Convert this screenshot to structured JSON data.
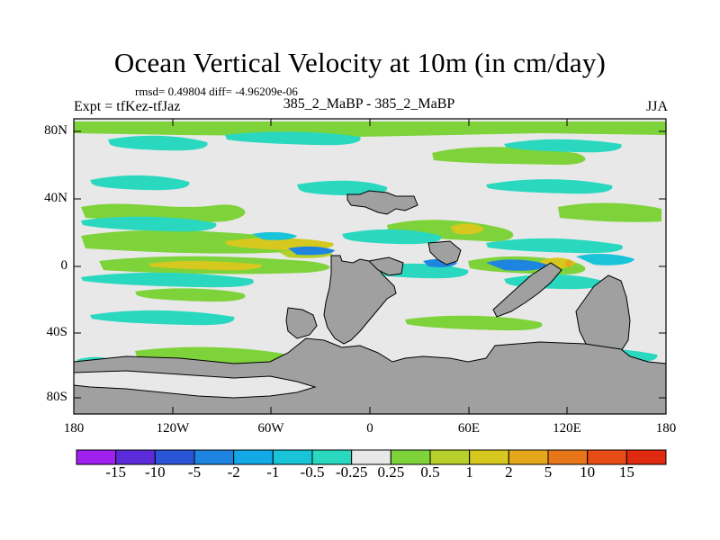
{
  "title": "Ocean Vertical Velocity at 10m (in cm/day)",
  "stats_text": "rmsd= 0.49804  diff= -4.96209e-06",
  "left_label": "Expt = tfKez-tfJaz",
  "center_label": "385_2_MaBP - 385_2_MaBP",
  "right_label": "JJA",
  "lat_labels": [
    "80N",
    "40N",
    "0",
    "40S",
    "80S"
  ],
  "lon_labels": [
    "180",
    "120W",
    "60W",
    "0",
    "60E",
    "120E",
    "180"
  ],
  "colorbar": {
    "labels": [
      "-15",
      "-10",
      "-5",
      "-2",
      "-1",
      "-0.5",
      "-0.25",
      "0.25",
      "0.5",
      "1",
      "2",
      "5",
      "10",
      "15"
    ],
    "colors": [
      "#a020f0",
      "#5b2bd9",
      "#2a55d8",
      "#1f84e0",
      "#12a9e6",
      "#19c4d8",
      "#2ad8c0",
      "#e8e8e8",
      "#7ed23a",
      "#b7cf2a",
      "#d6c81f",
      "#e6a81b",
      "#e8761a",
      "#e84c16",
      "#e02a10"
    ]
  },
  "colors": {
    "ocean_background": "#e8e8e8",
    "land": "#a0a0a0",
    "positive_weak": "#7ed23a",
    "positive_mid": "#b7cf2a",
    "positive_strong": "#d6c81f",
    "negative_weak": "#2ad8c0",
    "negative_mid": "#19c4d8",
    "negative_strong": "#1f84e0"
  }
}
